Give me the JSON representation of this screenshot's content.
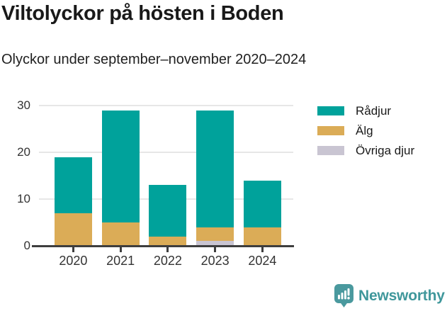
{
  "chart_data": {
    "type": "bar",
    "stacked": true,
    "title": "Viltolyckor på hösten i Boden",
    "subtitle": "Olyckor under september–november 2020–2024",
    "categories": [
      "2020",
      "2021",
      "2022",
      "2023",
      "2024"
    ],
    "series": [
      {
        "name": "Rådjur",
        "color": "#00A29B",
        "values": [
          12,
          24,
          11,
          25,
          10
        ]
      },
      {
        "name": "Älg",
        "color": "#DBAC57",
        "values": [
          7,
          5,
          2,
          3,
          4
        ]
      },
      {
        "name": "Övriga djur",
        "color": "#C9C5D2",
        "values": [
          0,
          0,
          0,
          1,
          0
        ]
      }
    ],
    "stack_order_bottom_to_top": [
      "Övriga djur",
      "Älg",
      "Rådjur"
    ],
    "totals": [
      19,
      29,
      13,
      29,
      14
    ],
    "xlabel": "",
    "ylabel": "",
    "ylim": [
      0,
      30
    ],
    "yticks": [
      0,
      10,
      20,
      30
    ],
    "grid": "horizontal",
    "legend_position": "right"
  },
  "footer": {
    "brand": "Newsworthy"
  },
  "colors": {
    "axis": "#3E3E3E",
    "grid": "#E7E7E7",
    "brand_teal": "#3F979B",
    "brand_icon": "#4A999E",
    "text_dark": "#191919"
  }
}
